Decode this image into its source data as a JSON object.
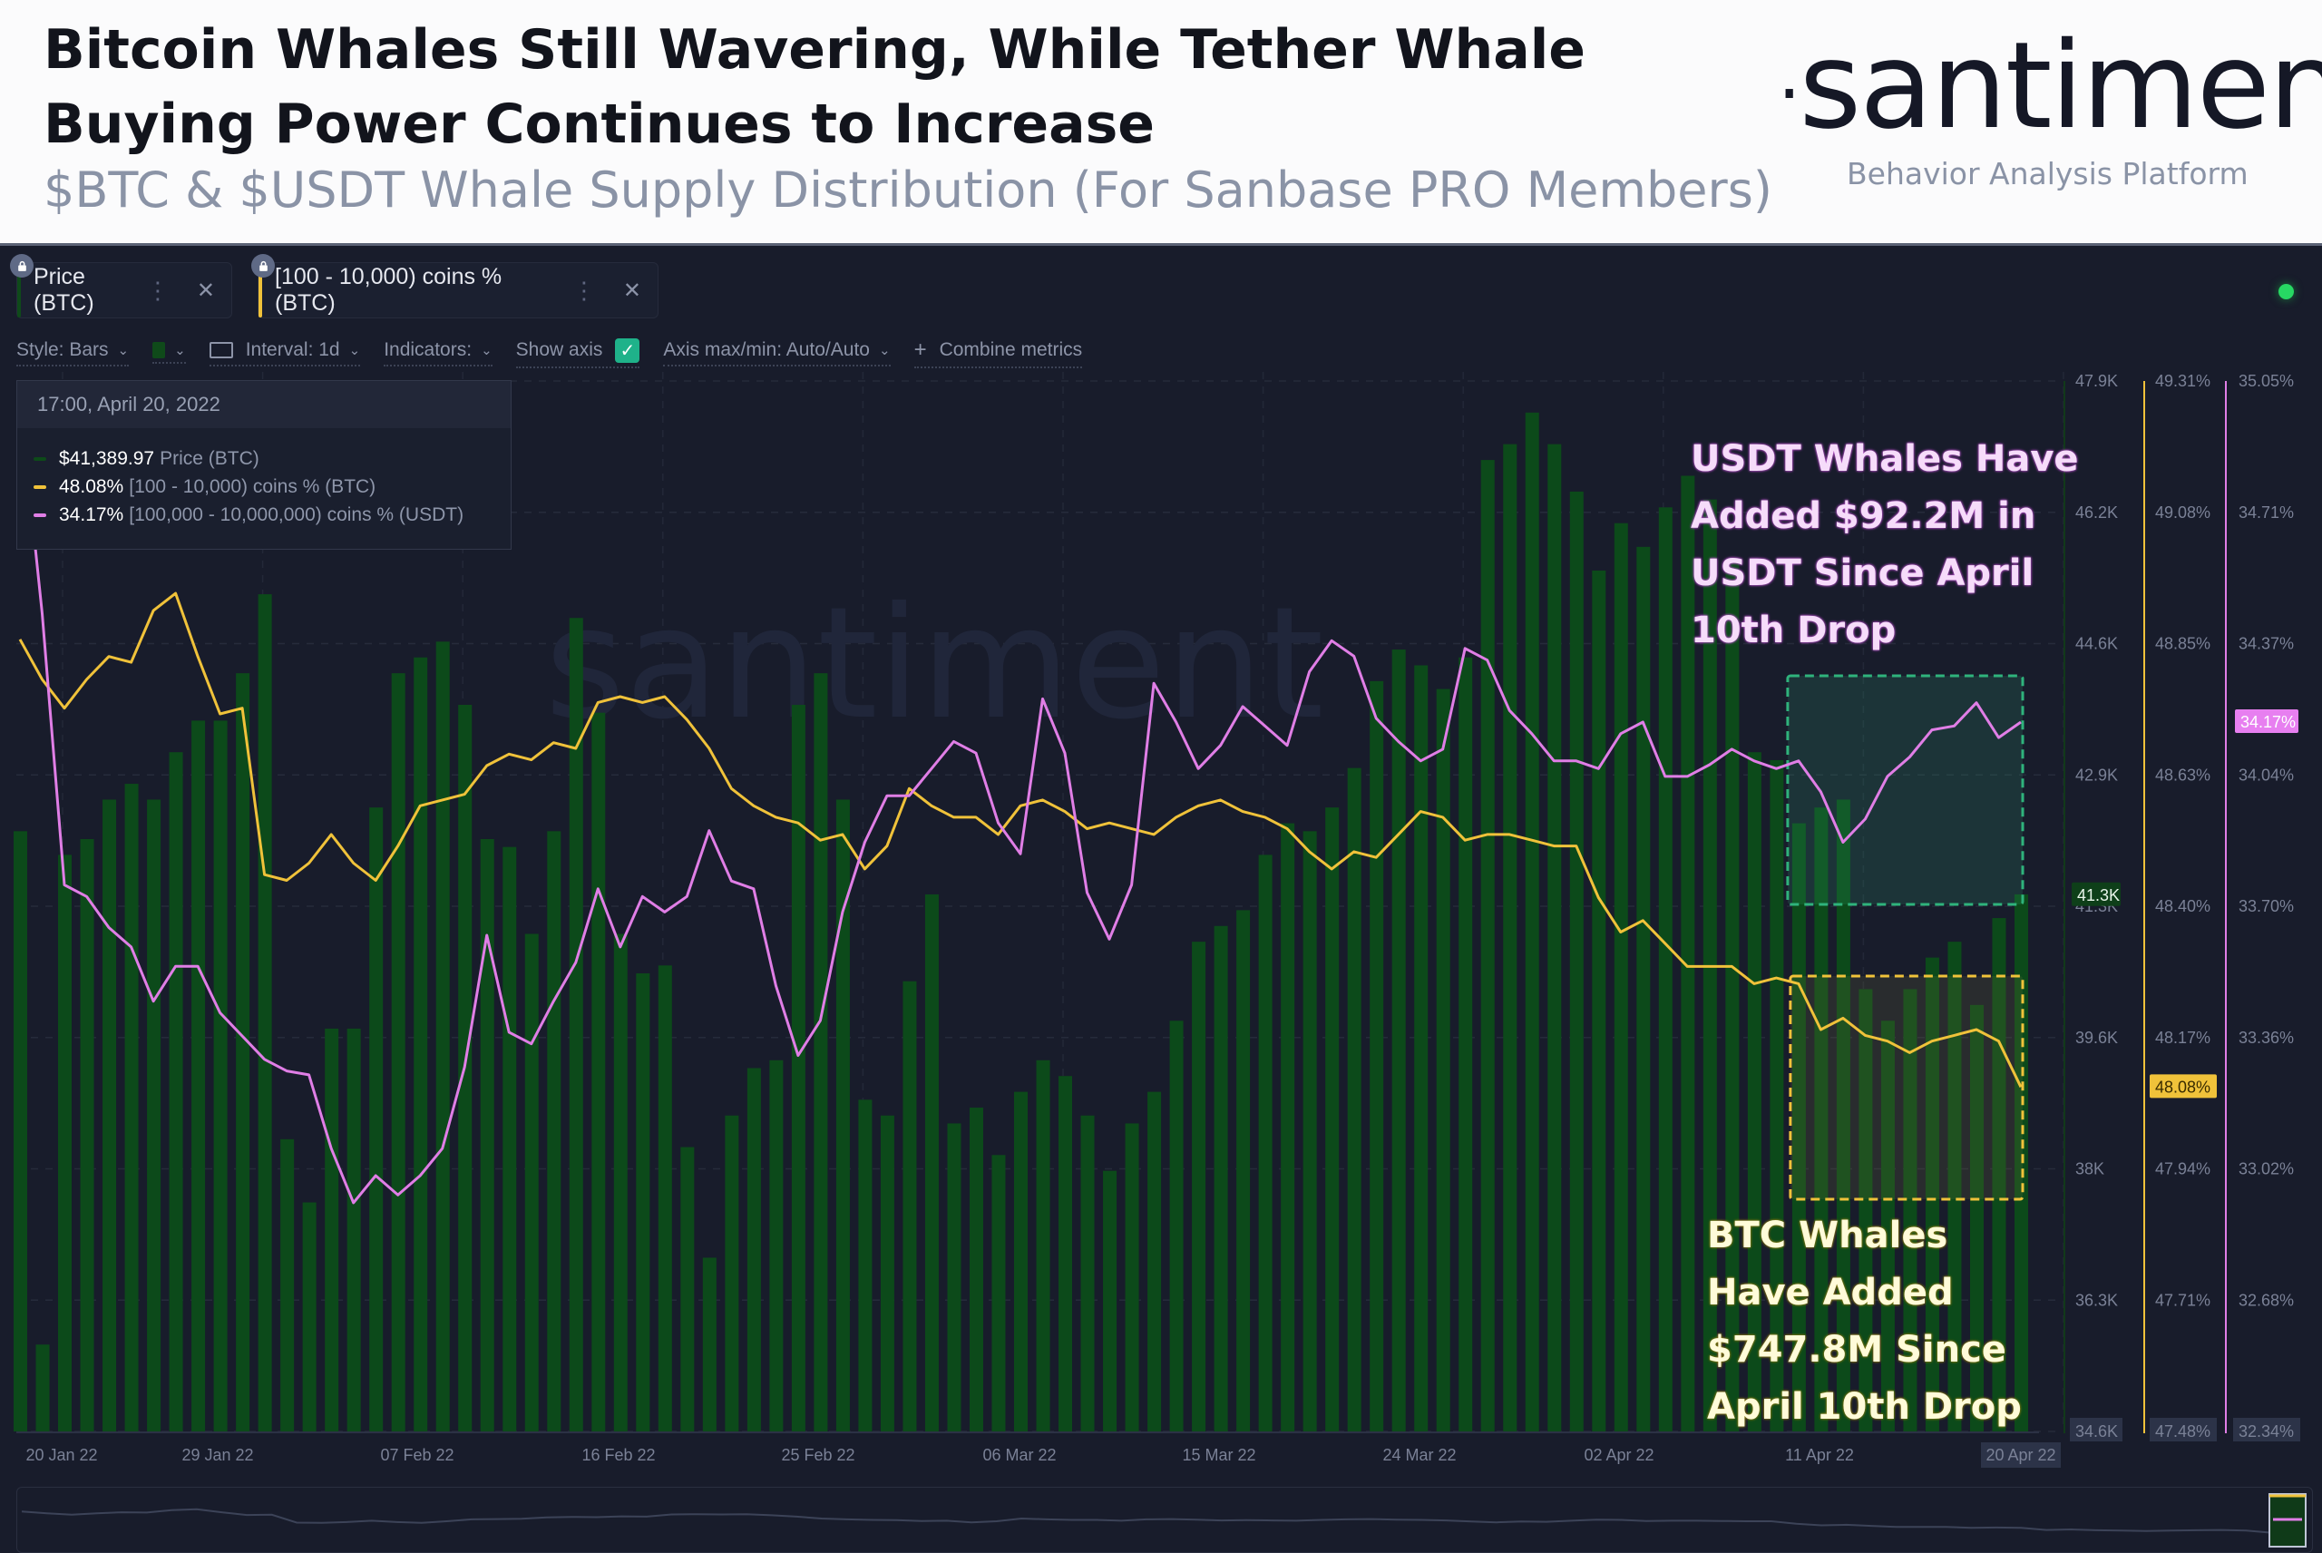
{
  "header": {
    "title": "Bitcoin Whales Still Wavering, While Tether Whale Buying Power Continues to Increase",
    "subtitle": "$BTC & $USDT Whale Supply Distribution (For Sanbase PRO Members)",
    "logo": "santiment",
    "tagline": "Behavior Analysis Platform"
  },
  "tabs": [
    {
      "label": "Price (BTC)",
      "color": "#0f4a1a",
      "icon": "lock-icon"
    },
    {
      "label": "[100 - 10,000) coins % (BTC)",
      "color": "#f0c23a",
      "icon": "lock-icon"
    }
  ],
  "toolbar": {
    "style": "Style: Bars",
    "interval": "Interval: 1d",
    "indicators": "Indicators:",
    "show_axis": "Show axis",
    "show_axis_checked": true,
    "axis_maxmin": "Axis max/min: Auto/Auto",
    "combine": "Combine metrics"
  },
  "tooltip": {
    "datetime": "17:00, April 20, 2022",
    "rows": [
      {
        "value": "$41,389.97",
        "name": "Price (BTC)",
        "color": "#0d4a19"
      },
      {
        "value": "48.08%",
        "name": "[100 - 10,000) coins % (BTC)",
        "color": "#f0c23a"
      },
      {
        "value": "34.17%",
        "name": "[100,000  - 10,000,000) coins % (USDT)",
        "color": "#e07ee6"
      }
    ]
  },
  "annotations": {
    "usdt": [
      "USDT Whales Have",
      "Added $92.2M in",
      "USDT Since April",
      "10th Drop"
    ],
    "btc": [
      "BTC Whales",
      "Have Added",
      "$747.8M Since",
      "April 10th Drop"
    ]
  },
  "colors": {
    "price": "#0c4a1a",
    "btc_whales": "#f0c23a",
    "usdt_whales": "#e07ee6",
    "usdt_box": "#2fb37c",
    "btc_box": "#f0c23a"
  },
  "chart_data": {
    "type": "bar+line",
    "title": "$BTC & $USDT Whale Supply Distribution",
    "x_range": [
      "18 Jan 22",
      "20 Apr 22"
    ],
    "x_ticks": [
      "20 Jan 22",
      "29 Jan 22",
      "07 Feb 22",
      "16 Feb 22",
      "25 Feb 22",
      "06 Mar 22",
      "15 Mar 22",
      "24 Mar 22",
      "02 Apr 22",
      "11 Apr 22",
      "20 Apr 22"
    ],
    "x_highlight": "20 Apr 22",
    "axes": [
      {
        "name": "Price (BTC)",
        "ticks": [
          "47.9K",
          "46.2K",
          "44.6K",
          "42.9K",
          "41.3K",
          "39.6K",
          "38K",
          "36.3K",
          "34.6K"
        ],
        "range": [
          34.6,
          47.9
        ],
        "current": "41.3K",
        "unit": "K USD"
      },
      {
        "name": "[100 - 10,000) coins % (BTC)",
        "ticks": [
          "49.31%",
          "49.08%",
          "48.85%",
          "48.63%",
          "48.40%",
          "48.17%",
          "47.94%",
          "47.71%",
          "47.48%"
        ],
        "range": [
          47.48,
          49.31
        ],
        "current": "48.08%"
      },
      {
        "name": "[100,000 - 10,000,000) coins % (USDT)",
        "ticks": [
          "35.05%",
          "34.71%",
          "34.37%",
          "34.04%",
          "33.70%",
          "33.36%",
          "33.02%",
          "32.68%",
          "32.34%"
        ],
        "range": [
          32.34,
          35.05
        ],
        "current": "34.17%"
      }
    ],
    "series": [
      {
        "name": "Price (BTC)",
        "type": "bar",
        "unit": "K USD",
        "values": [
          42.2,
          35.7,
          41.9,
          42.1,
          42.6,
          42.8,
          42.6,
          43.2,
          43.6,
          43.6,
          44.2,
          45.2,
          38.3,
          37.5,
          39.7,
          39.7,
          42.5,
          44.2,
          44.4,
          44.6,
          43.8,
          42.1,
          42.0,
          40.9,
          42.2,
          44.9,
          43.7,
          40.9,
          40.4,
          40.5,
          38.2,
          36.8,
          38.6,
          39.2,
          39.3,
          43.8,
          44.2,
          42.6,
          38.8,
          38.6,
          40.3,
          41.4,
          38.5,
          38.7,
          38.1,
          38.9,
          39.3,
          39.1,
          38.6,
          37.9,
          38.5,
          38.9,
          39.8,
          40.8,
          41.0,
          41.2,
          41.9,
          42.3,
          42.2,
          42.5,
          43.0,
          44.1,
          44.5,
          44.3,
          44.0,
          44.4,
          46.9,
          47.1,
          47.5,
          47.1,
          46.5,
          45.5,
          46.1,
          45.8,
          46.3,
          46.7,
          46.4,
          45.6,
          43.2,
          43.1,
          42.3,
          42.5,
          42.6,
          40.2,
          39.8,
          40.2,
          40.6,
          40.8,
          40.0,
          41.1,
          41.4
        ]
      },
      {
        "name": "[100 - 10,000) coins % (BTC)",
        "type": "line",
        "unit": "%",
        "values": [
          48.86,
          48.79,
          48.74,
          48.79,
          48.83,
          48.82,
          48.91,
          48.94,
          48.83,
          48.73,
          48.74,
          48.45,
          48.44,
          48.47,
          48.52,
          48.47,
          48.44,
          48.5,
          48.57,
          48.58,
          48.59,
          48.64,
          48.66,
          48.65,
          48.68,
          48.67,
          48.75,
          48.76,
          48.75,
          48.76,
          48.72,
          48.67,
          48.6,
          48.57,
          48.55,
          48.54,
          48.51,
          48.52,
          48.46,
          48.5,
          48.6,
          48.57,
          48.55,
          48.55,
          48.52,
          48.57,
          48.58,
          48.56,
          48.53,
          48.54,
          48.53,
          48.52,
          48.55,
          48.57,
          48.58,
          48.56,
          48.55,
          48.53,
          48.49,
          48.46,
          48.49,
          48.48,
          48.52,
          48.56,
          48.55,
          48.51,
          48.52,
          48.52,
          48.51,
          48.5,
          48.5,
          48.41,
          48.35,
          48.37,
          48.33,
          48.29,
          48.29,
          48.29,
          48.26,
          48.27,
          48.26,
          48.18,
          48.2,
          48.17,
          48.16,
          48.14,
          48.16,
          48.17,
          48.18,
          48.16,
          48.08
        ]
      },
      {
        "name": "[100,000 - 10,000,000) coins % (USDT)",
        "type": "line",
        "unit": "%",
        "values": [
          35.0,
          34.45,
          33.75,
          33.72,
          33.64,
          33.59,
          33.45,
          33.54,
          33.54,
          33.42,
          33.36,
          33.3,
          33.27,
          33.26,
          33.07,
          32.93,
          33.0,
          32.95,
          33.0,
          33.07,
          33.28,
          33.62,
          33.37,
          33.34,
          33.45,
          33.55,
          33.74,
          33.59,
          33.72,
          33.68,
          33.72,
          33.89,
          33.76,
          33.74,
          33.49,
          33.31,
          33.4,
          33.68,
          33.86,
          33.98,
          33.98,
          34.05,
          34.12,
          34.09,
          33.91,
          33.83,
          34.23,
          34.09,
          33.73,
          33.61,
          33.75,
          34.27,
          34.17,
          34.05,
          34.11,
          34.21,
          34.16,
          34.11,
          34.3,
          34.38,
          34.34,
          34.18,
          34.12,
          34.07,
          34.1,
          34.36,
          34.33,
          34.2,
          34.14,
          34.07,
          34.07,
          34.05,
          34.14,
          34.17,
          34.03,
          34.03,
          34.06,
          34.1,
          34.07,
          34.05,
          34.07,
          33.99,
          33.86,
          33.92,
          34.03,
          34.08,
          34.15,
          34.16,
          34.22,
          34.13,
          34.17
        ]
      }
    ],
    "highlight_boxes": [
      {
        "series": "[100,000 - 10,000,000) coins % (USDT)",
        "from": "10 Apr 22",
        "to": "20 Apr 22",
        "color": "#2fb37c"
      },
      {
        "series": "[100 - 10,000) coins % (BTC)",
        "from": "10 Apr 22",
        "to": "20 Apr 22",
        "color": "#f0c23a"
      }
    ],
    "grid": true,
    "watermark": "santiment"
  }
}
